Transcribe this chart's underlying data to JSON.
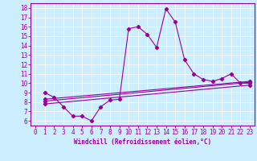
{
  "title": "",
  "xlabel": "Windchill (Refroidissement éolien,°C)",
  "bg_color": "#cceeff",
  "line_color": "#990099",
  "xlim": [
    -0.5,
    23.5
  ],
  "ylim": [
    5.5,
    18.5
  ],
  "xticks": [
    0,
    1,
    2,
    3,
    4,
    5,
    6,
    7,
    8,
    9,
    10,
    11,
    12,
    13,
    14,
    15,
    16,
    17,
    18,
    19,
    20,
    21,
    22,
    23
  ],
  "yticks": [
    6,
    7,
    8,
    9,
    10,
    11,
    12,
    13,
    14,
    15,
    16,
    17,
    18
  ],
  "series1_x": [
    1,
    2,
    3,
    4,
    5,
    6,
    7,
    8,
    9,
    10,
    11,
    12,
    13,
    14,
    15,
    16,
    17,
    18,
    19,
    20,
    21,
    22,
    23
  ],
  "series1_y": [
    9.0,
    8.5,
    7.5,
    6.5,
    6.5,
    6.0,
    7.5,
    8.2,
    8.3,
    15.8,
    16.0,
    15.2,
    13.8,
    17.9,
    16.5,
    12.5,
    11.0,
    10.4,
    10.2,
    10.5,
    11.0,
    10.0,
    10.0
  ],
  "series2_x": [
    1,
    23
  ],
  "series2_y": [
    8.3,
    10.2
  ],
  "series3_x": [
    1,
    23
  ],
  "series3_y": [
    7.8,
    9.8
  ],
  "series4_x": [
    1,
    23
  ],
  "series4_y": [
    8.1,
    10.1
  ],
  "grid_color": "#ffffff",
  "label_fontsize": 5.5,
  "xlabel_fontsize": 5.5
}
